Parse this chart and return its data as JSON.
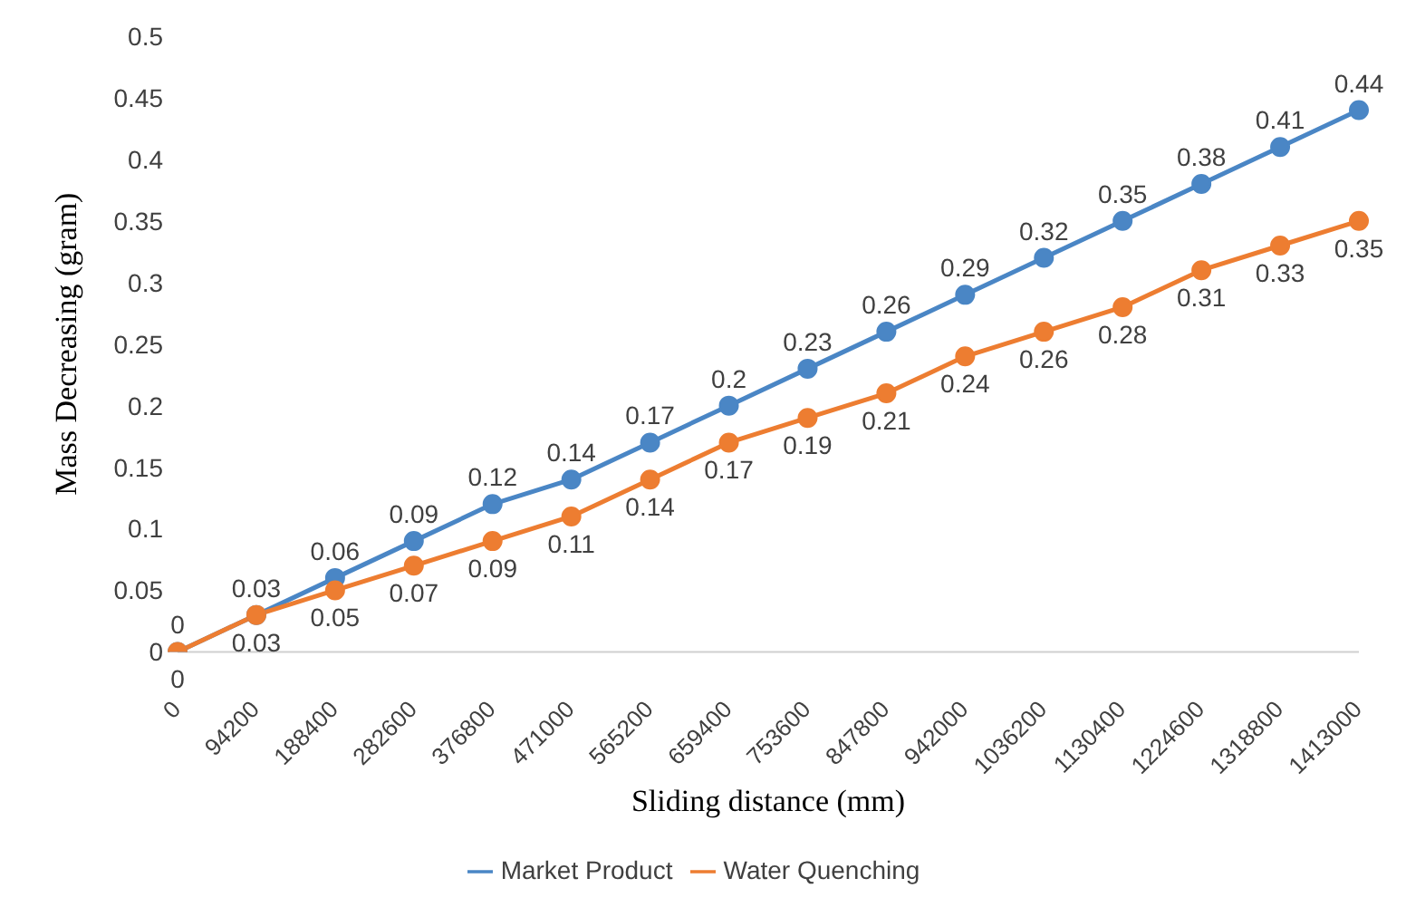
{
  "chart_data": {
    "type": "line",
    "xlabel": "Sliding distance (mm)",
    "ylabel": "Mass Decreasing (gram)",
    "categories": [
      "0",
      "94200",
      "188400",
      "282600",
      "376800",
      "471000",
      "565200",
      "659400",
      "753600",
      "847800",
      "942000",
      "1036200",
      "1130400",
      "1224600",
      "1318800",
      "1413000"
    ],
    "series": [
      {
        "name": "Market Product",
        "color": "#4a86c5",
        "values": [
          0,
          0.03,
          0.06,
          0.09,
          0.12,
          0.14,
          0.17,
          0.2,
          0.23,
          0.26,
          0.29,
          0.32,
          0.35,
          0.38,
          0.41,
          0.44
        ]
      },
      {
        "name": "Water Quenching",
        "color": "#ed7d31",
        "values": [
          0,
          0.03,
          0.05,
          0.07,
          0.09,
          0.11,
          0.14,
          0.17,
          0.19,
          0.21,
          0.24,
          0.26,
          0.28,
          0.31,
          0.33,
          0.35
        ]
      }
    ],
    "ylim": [
      0,
      0.5
    ],
    "yticks": [
      0,
      0.05,
      0.1,
      0.15,
      0.2,
      0.25,
      0.3,
      0.35,
      0.4,
      0.45,
      0.5
    ],
    "grid": false,
    "legend": "bottom",
    "marker": "circle",
    "line_style": "solid",
    "data_labels": true
  }
}
